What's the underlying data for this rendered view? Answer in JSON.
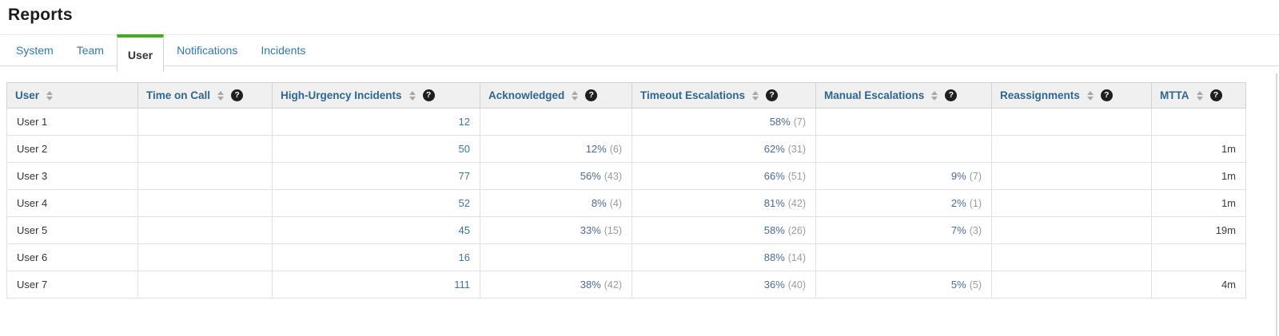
{
  "page": {
    "title": "Reports"
  },
  "tabs": {
    "items": [
      {
        "label": "System",
        "active": false
      },
      {
        "label": "Team",
        "active": false
      },
      {
        "label": "User",
        "active": true
      },
      {
        "label": "Notifications",
        "active": false
      },
      {
        "label": "Incidents",
        "active": false
      }
    ]
  },
  "icons": {
    "help_glyph": "?",
    "sort_icon": "sort-arrows"
  },
  "colors": {
    "active_tab_indicator": "#3db014",
    "tab_link_blue": "#2e79b5",
    "header_text_blue": "#2f6690",
    "value_blue": "#3a74ad",
    "percent_blue": "#4c6a96",
    "note_gray": "#9b9b9b",
    "header_bg": "#f0f0f0"
  },
  "table": {
    "columns": [
      {
        "label": "User",
        "sortable": true,
        "help": false
      },
      {
        "label": "Time on Call",
        "sortable": true,
        "help": true
      },
      {
        "label": "High-Urgency Incidents",
        "sortable": true,
        "help": true
      },
      {
        "label": "Acknowledged",
        "sortable": true,
        "help": true
      },
      {
        "label": "Timeout Escalations",
        "sortable": true,
        "help": true
      },
      {
        "label": "Manual Escalations",
        "sortable": true,
        "help": true
      },
      {
        "label": "Reassignments",
        "sortable": true,
        "help": true
      },
      {
        "label": "MTTA",
        "sortable": true,
        "help": true
      }
    ],
    "rows": [
      {
        "user": "User 1",
        "time_on_call": "",
        "high_urgency_incidents": "12",
        "acknowledged": "",
        "acknowledged_count": "",
        "timeout_escalations": "58%",
        "timeout_escalations_count": "(7)",
        "manual_escalations": "",
        "manual_escalations_count": "",
        "reassignments": "",
        "mtta": ""
      },
      {
        "user": "User 2",
        "time_on_call": "",
        "high_urgency_incidents": "50",
        "acknowledged": "12%",
        "acknowledged_count": "(6)",
        "timeout_escalations": "62%",
        "timeout_escalations_count": "(31)",
        "manual_escalations": "",
        "manual_escalations_count": "",
        "reassignments": "",
        "mtta": "1m"
      },
      {
        "user": "User 3",
        "time_on_call": "",
        "high_urgency_incidents": "77",
        "acknowledged": "56%",
        "acknowledged_count": "(43)",
        "timeout_escalations": "66%",
        "timeout_escalations_count": "(51)",
        "manual_escalations": "9%",
        "manual_escalations_count": "(7)",
        "reassignments": "",
        "mtta": "1m"
      },
      {
        "user": "User 4",
        "time_on_call": "",
        "high_urgency_incidents": "52",
        "acknowledged": "8%",
        "acknowledged_count": "(4)",
        "timeout_escalations": "81%",
        "timeout_escalations_count": "(42)",
        "manual_escalations": "2%",
        "manual_escalations_count": "(1)",
        "reassignments": "",
        "mtta": "1m"
      },
      {
        "user": "User 5",
        "time_on_call": "",
        "high_urgency_incidents": "45",
        "acknowledged": "33%",
        "acknowledged_count": "(15)",
        "timeout_escalations": "58%",
        "timeout_escalations_count": "(26)",
        "manual_escalations": "7%",
        "manual_escalations_count": "(3)",
        "reassignments": "",
        "mtta": "19m"
      },
      {
        "user": "User 6",
        "time_on_call": "",
        "high_urgency_incidents": "16",
        "acknowledged": "",
        "acknowledged_count": "",
        "timeout_escalations": "88%",
        "timeout_escalations_count": "(14)",
        "manual_escalations": "",
        "manual_escalations_count": "",
        "reassignments": "",
        "mtta": ""
      },
      {
        "user": "User 7",
        "time_on_call": "",
        "high_urgency_incidents": "111",
        "acknowledged": "38%",
        "acknowledged_count": "(42)",
        "timeout_escalations": "36%",
        "timeout_escalations_count": "(40)",
        "manual_escalations": "5%",
        "manual_escalations_count": "(5)",
        "reassignments": "",
        "mtta": "4m"
      }
    ]
  }
}
